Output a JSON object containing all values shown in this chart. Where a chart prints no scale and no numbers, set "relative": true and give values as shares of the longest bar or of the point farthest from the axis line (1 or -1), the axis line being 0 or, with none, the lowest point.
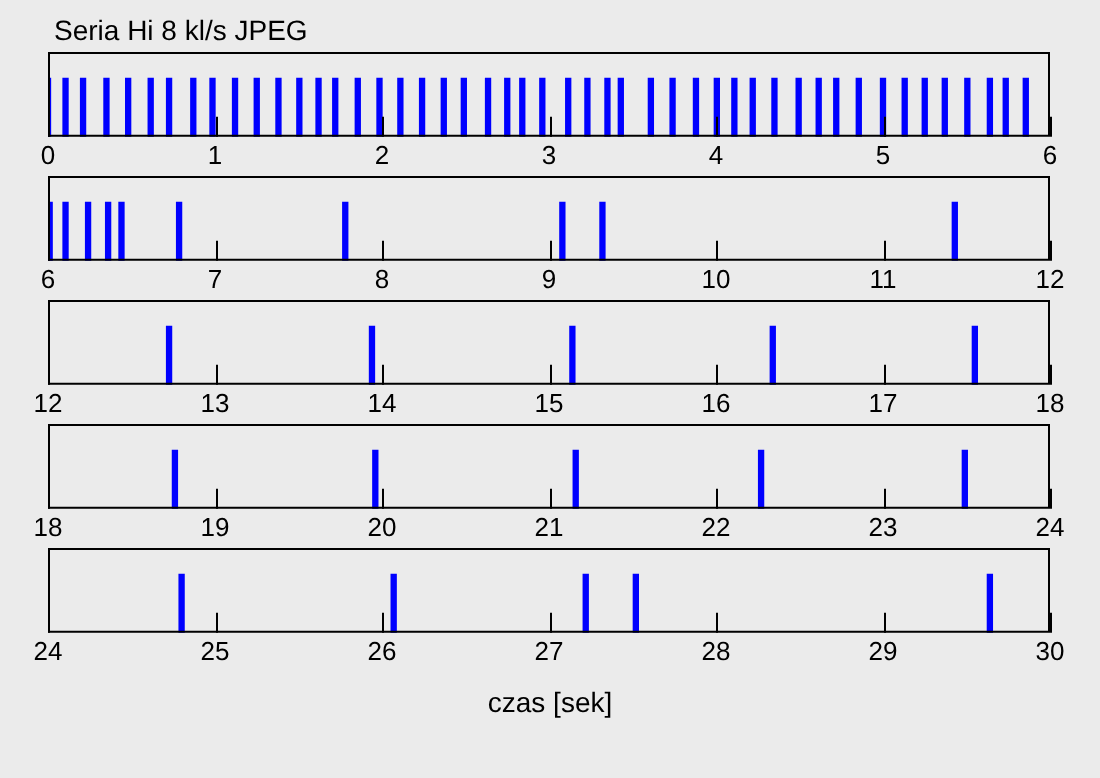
{
  "chart_data": [
    {
      "type": "bar",
      "title": "Seria Hi 8 kl/s JPEG",
      "relative": true,
      "color": "#0000ff",
      "tick_labels": "x",
      "xlim": [
        0,
        6
      ],
      "xticks": [
        0,
        1,
        2,
        3,
        4,
        5,
        6
      ],
      "x": [
        0.0,
        0.105,
        0.21,
        0.35,
        0.48,
        0.615,
        0.725,
        0.87,
        0.985,
        1.12,
        1.25,
        1.38,
        1.505,
        1.62,
        1.72,
        1.855,
        1.985,
        2.11,
        2.24,
        2.37,
        2.49,
        2.635,
        2.75,
        2.84,
        2.96,
        3.115,
        3.23,
        3.35,
        3.43,
        3.61,
        3.74,
        3.88,
        4.005,
        4.11,
        4.22,
        4.35,
        4.495,
        4.615,
        4.72,
        4.855,
        5.0,
        5.13,
        5.25,
        5.37,
        5.505,
        5.64,
        5.735,
        5.855
      ],
      "values": [
        1,
        1,
        1,
        1,
        1,
        1,
        1,
        1,
        1,
        1,
        1,
        1,
        1,
        1,
        1,
        1,
        1,
        1,
        1,
        1,
        1,
        1,
        1,
        1,
        1,
        1,
        1,
        1,
        1,
        1,
        1,
        1,
        1,
        1,
        1,
        1,
        1,
        1,
        1,
        1,
        1,
        1,
        1,
        1,
        1,
        1,
        1,
        1
      ]
    },
    {
      "type": "bar",
      "relative": true,
      "color": "#0000ff",
      "tick_labels": "x",
      "xlim": [
        6,
        12
      ],
      "xticks": [
        6,
        7,
        8,
        9,
        10,
        11,
        12
      ],
      "x": [
        6.01,
        6.105,
        6.24,
        6.36,
        6.44,
        6.785,
        7.78,
        9.08,
        9.32,
        11.43
      ],
      "values": [
        1,
        1,
        1,
        1,
        1,
        1,
        1,
        1,
        1,
        1
      ]
    },
    {
      "type": "bar",
      "relative": true,
      "color": "#0000ff",
      "tick_labels": "x",
      "xlim": [
        12,
        18
      ],
      "xticks": [
        12,
        13,
        14,
        15,
        16,
        17,
        18
      ],
      "x": [
        12.725,
        13.94,
        15.14,
        16.34,
        17.55
      ],
      "values": [
        1,
        1,
        1,
        1,
        1
      ]
    },
    {
      "type": "bar",
      "relative": true,
      "color": "#0000ff",
      "tick_labels": "x",
      "xlim": [
        18,
        24
      ],
      "xticks": [
        18,
        19,
        20,
        21,
        22,
        23,
        24
      ],
      "x": [
        18.76,
        19.96,
        21.16,
        22.27,
        23.49
      ],
      "values": [
        1,
        1,
        1,
        1,
        1
      ]
    },
    {
      "type": "bar",
      "relative": true,
      "color": "#0000ff",
      "tick_labels": "x",
      "xlim": [
        24,
        30
      ],
      "xticks": [
        24,
        25,
        26,
        27,
        28,
        29,
        30
      ],
      "xlabel": "czas [sek]",
      "x": [
        24.8,
        26.07,
        27.22,
        27.52,
        29.64
      ],
      "values": [
        1,
        1,
        1,
        1,
        1
      ]
    }
  ]
}
